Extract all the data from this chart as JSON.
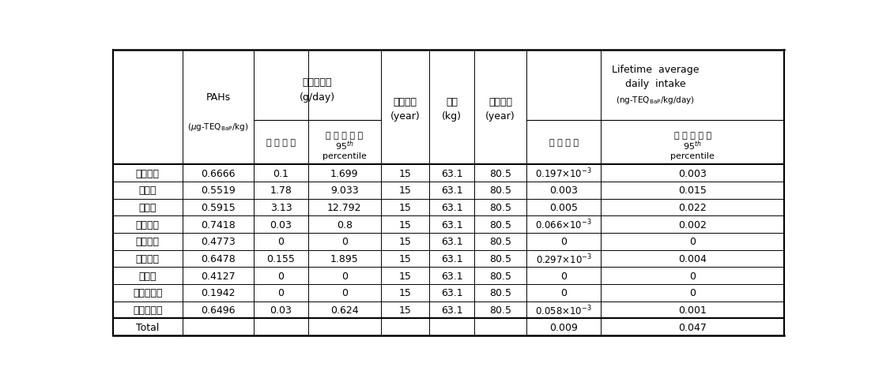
{
  "rows": [
    [
      "올리브유",
      "0.6666",
      "0.1",
      "1.699",
      "15",
      "63.1",
      "80.5",
      "0.197×10",
      "-3",
      "0.003"
    ],
    [
      "참기름",
      "0.5519",
      "1.78",
      "9.033",
      "15",
      "63.1",
      "80.5",
      "0.003",
      "",
      "0.015"
    ],
    [
      "콩기름",
      "0.5915",
      "3.13",
      "12.792",
      "15",
      "63.1",
      "80.5",
      "0.005",
      "",
      "0.022"
    ],
    [
      "옥수수유",
      "0.7418",
      "0.03",
      "0.8",
      "15",
      "63.1",
      "80.5",
      "0.066×10",
      "-3",
      "0.002"
    ],
    [
      "카놀라유",
      "0.4773",
      "0",
      "0",
      "15",
      "63.1",
      "80.5",
      "0",
      "",
      "0"
    ],
    [
      "포도씨유",
      "0.6478",
      "0.155",
      "1.895",
      "15",
      "63.1",
      "80.5",
      "0.297×10",
      "-3",
      "0.004"
    ],
    [
      "현미유",
      "0.4127",
      "0",
      "0",
      "15",
      "63.1",
      "80.5",
      "0",
      "",
      "0"
    ],
    [
      "틀김전용유",
      "0.1942",
      "0",
      "0",
      "15",
      "63.1",
      "80.5",
      "0",
      "",
      "0"
    ],
    [
      "헤바라기유",
      "0.6496",
      "0.03",
      "0.624",
      "15",
      "63.1",
      "80.5",
      "0.058×10",
      "-3",
      "0.001"
    ]
  ],
  "total_row": [
    "Total",
    "",
    "",
    "",
    "",
    "",
    "",
    "0.009",
    "",
    "0.047"
  ],
  "background_color": "#ffffff"
}
